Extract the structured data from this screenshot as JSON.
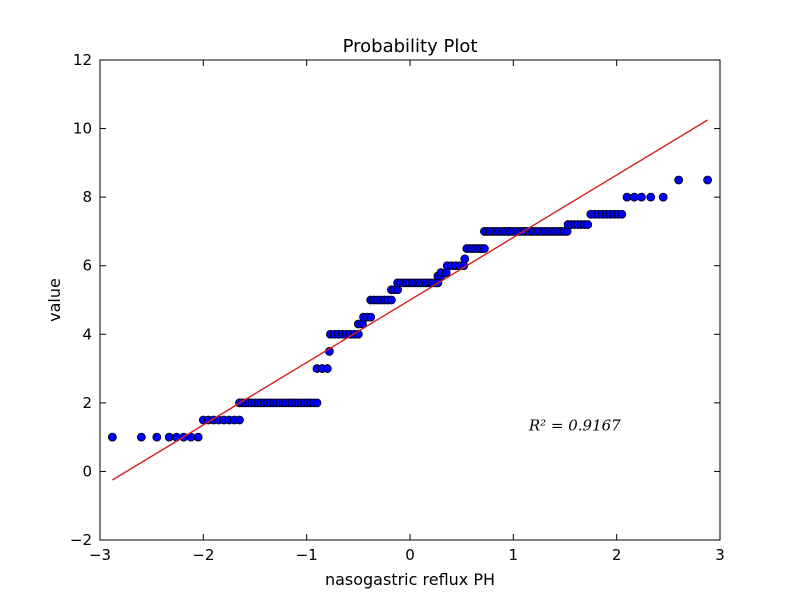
{
  "chart_data": {
    "type": "scatter",
    "title": "Probability Plot",
    "xlabel": "nasogastric reflux PH",
    "ylabel": "value",
    "xlim": [
      -3,
      3
    ],
    "ylim": [
      -2,
      12
    ],
    "x_ticks": [
      -3,
      -2,
      -1,
      0,
      1,
      2,
      3
    ],
    "y_ticks": [
      -2,
      0,
      2,
      4,
      6,
      8,
      10,
      12
    ],
    "x_tick_labels": [
      "−3",
      "−2",
      "−1",
      "0",
      "1",
      "2",
      "3"
    ],
    "y_tick_labels": [
      "−2",
      "0",
      "2",
      "4",
      "6",
      "8",
      "10",
      "12"
    ],
    "grid": false,
    "legend": "none",
    "colors": {
      "points": "#0000ff",
      "point_edge": "#000000",
      "fit_line": "#d62020",
      "axes": "#000000"
    },
    "annotation": {
      "text": "R² = 0.9167",
      "x": 1.15,
      "y": 1.2
    },
    "fit_line": {
      "x": [
        -2.88,
        2.88
      ],
      "y": [
        -0.25,
        10.25
      ]
    },
    "series": [
      {
        "groups": [
          {
            "value": 1.0,
            "x_from": -2.88,
            "x_to": -2.88,
            "count": 1
          },
          {
            "value": 1.0,
            "x_from": -2.6,
            "x_to": -2.6,
            "count": 1
          },
          {
            "value": 1.0,
            "x_from": -2.45,
            "x_to": -2.45,
            "count": 1
          },
          {
            "value": 1.0,
            "x_from": -2.33,
            "x_to": -2.05,
            "count": 5
          },
          {
            "value": 1.5,
            "x_from": -2.0,
            "x_to": -1.65,
            "count": 8
          },
          {
            "value": 2.0,
            "x_from": -1.65,
            "x_to": -0.9,
            "count": 26
          },
          {
            "value": 3.0,
            "x_from": -0.9,
            "x_to": -0.8,
            "count": 3
          },
          {
            "value": 3.5,
            "x_from": -0.78,
            "x_to": -0.78,
            "count": 1
          },
          {
            "value": 4.0,
            "x_from": -0.77,
            "x_to": -0.5,
            "count": 8
          },
          {
            "value": 4.3,
            "x_from": -0.5,
            "x_to": -0.46,
            "count": 2
          },
          {
            "value": 4.5,
            "x_from": -0.45,
            "x_to": -0.38,
            "count": 3
          },
          {
            "value": 5.0,
            "x_from": -0.38,
            "x_to": -0.18,
            "count": 7
          },
          {
            "value": 5.3,
            "x_from": -0.18,
            "x_to": -0.12,
            "count": 3
          },
          {
            "value": 5.5,
            "x_from": -0.12,
            "x_to": 0.27,
            "count": 15
          },
          {
            "value": 5.7,
            "x_from": 0.27,
            "x_to": 0.3,
            "count": 2
          },
          {
            "value": 5.8,
            "x_from": 0.3,
            "x_to": 0.35,
            "count": 2
          },
          {
            "value": 6.0,
            "x_from": 0.36,
            "x_to": 0.52,
            "count": 5
          },
          {
            "value": 6.2,
            "x_from": 0.53,
            "x_to": 0.53,
            "count": 1
          },
          {
            "value": 6.5,
            "x_from": 0.55,
            "x_to": 0.72,
            "count": 7
          },
          {
            "value": 7.0,
            "x_from": 0.72,
            "x_to": 1.52,
            "count": 30
          },
          {
            "value": 7.2,
            "x_from": 1.53,
            "x_to": 1.72,
            "count": 7
          },
          {
            "value": 7.5,
            "x_from": 1.75,
            "x_to": 2.05,
            "count": 9
          },
          {
            "value": 8.0,
            "x_from": 2.1,
            "x_to": 2.1,
            "count": 1
          },
          {
            "value": 8.0,
            "x_from": 2.17,
            "x_to": 2.24,
            "count": 2
          },
          {
            "value": 8.0,
            "x_from": 2.33,
            "x_to": 2.33,
            "count": 1
          },
          {
            "value": 8.0,
            "x_from": 2.45,
            "x_to": 2.45,
            "count": 1
          },
          {
            "value": 8.5,
            "x_from": 2.6,
            "x_to": 2.6,
            "count": 1
          },
          {
            "value": 8.5,
            "x_from": 2.88,
            "x_to": 2.88,
            "count": 1
          }
        ]
      }
    ]
  }
}
